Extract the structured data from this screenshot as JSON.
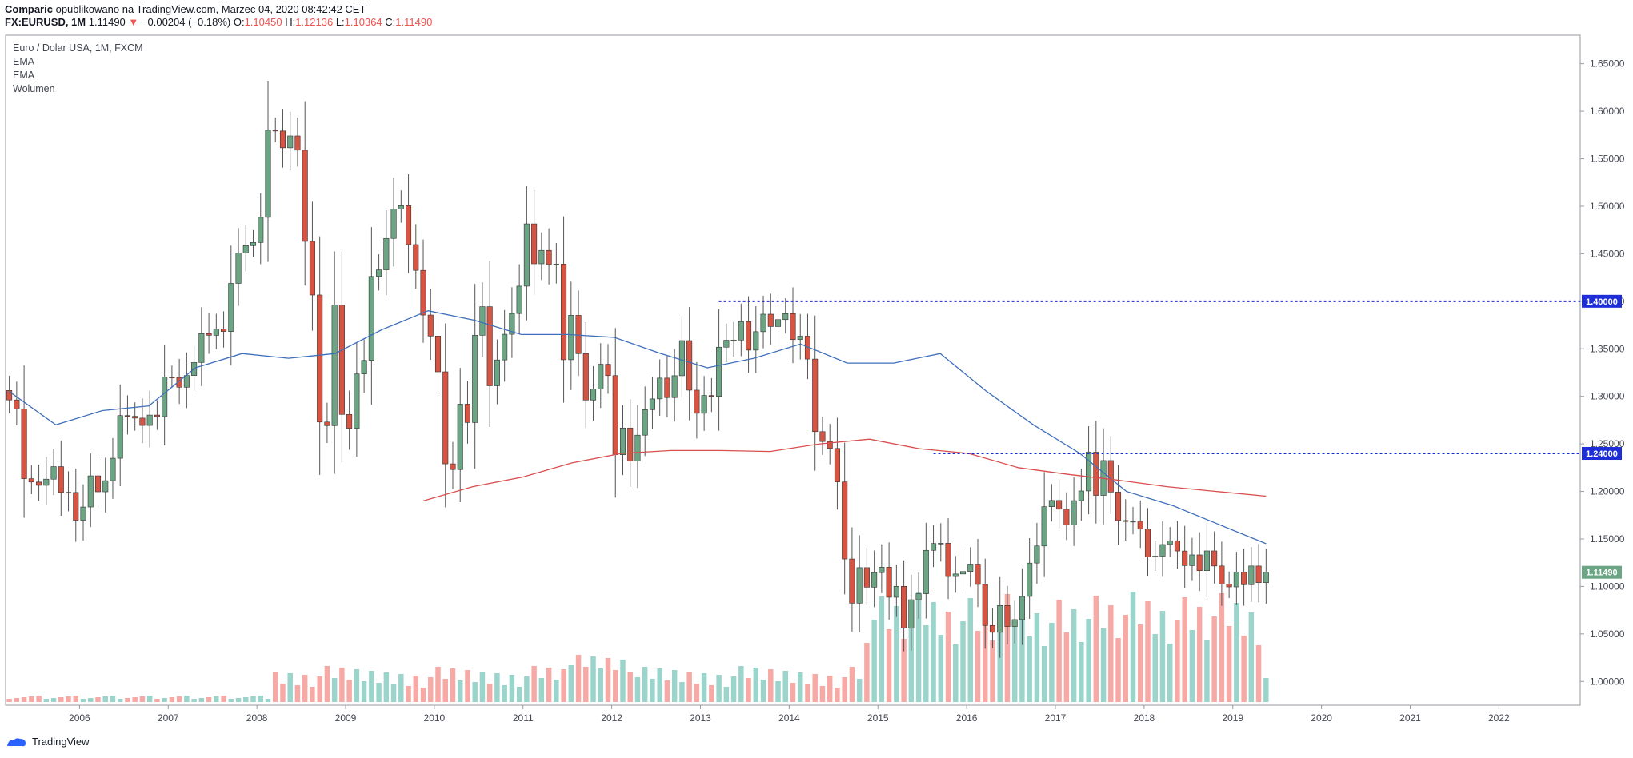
{
  "header": {
    "author": "Comparic",
    "published": "opublikowano na TradingView.com, Marzec 04, 2020 08:42:42 CET",
    "symbol": "FX:EURUSD, 1M",
    "last": "1.11490",
    "change": "−0.00204 (−0.18%)",
    "open_label": "O:",
    "open": "1.10450",
    "high_label": "H:",
    "high": "1.12136",
    "low_label": "L:",
    "low": "1.10364",
    "close_label": "C:",
    "close": "1.11490"
  },
  "legend": {
    "title": "Euro / Dolar USA, 1M, FXCM",
    "items": [
      "EMA",
      "EMA",
      "Wolumen"
    ]
  },
  "footer": {
    "brand": "TradingView"
  },
  "colors": {
    "up": "#6ba583",
    "down": "#d75442",
    "vol_up": "#9ad4cb",
    "vol_down": "#f6a9a5",
    "ema_fast": "#3f6fba",
    "ema_slow": "#d94e4e",
    "hline": "#1d2dd8",
    "price_tag": "#6ba583"
  },
  "chart_data": {
    "type": "candlestick",
    "yticks": [
      "1.65000",
      "1.60000",
      "1.55000",
      "1.50000",
      "1.45000",
      "1.40000",
      "1.35000",
      "1.30000",
      "1.25000",
      "1.20000",
      "1.15000",
      "1.10000",
      "1.05000",
      "1.00000"
    ],
    "xticks": [
      "2006",
      "2007",
      "2008",
      "2009",
      "2010",
      "2011",
      "2012",
      "2013",
      "2014",
      "2015",
      "2016",
      "2017",
      "2018",
      "2019",
      "2020",
      "2021",
      "2022"
    ],
    "ylim": [
      0.975,
      1.68
    ],
    "x_range": [
      "2005-03",
      "2022-11"
    ],
    "horizontal_levels": [
      {
        "label": "1.40000",
        "value": 1.4,
        "from": "2013-03"
      },
      {
        "label": "1.24000",
        "value": 1.24,
        "from": "2015-08"
      }
    ],
    "last_price_label": "1.11490",
    "last_price": 1.1149,
    "candles_start": "2005-03",
    "closes": [
      1.2962,
      1.2868,
      1.2134,
      1.2099,
      1.2064,
      1.2129,
      1.2261,
      1.1991,
      1.1989,
      1.1697,
      1.1836,
      1.2164,
      1.1996,
      1.2113,
      1.2349,
      1.2798,
      1.279,
      1.2771,
      1.2694,
      1.2803,
      1.2787,
      1.3202,
      1.3198,
      1.3096,
      1.3219,
      1.3356,
      1.366,
      1.3642,
      1.3706,
      1.3682,
      1.4188,
      1.4508,
      1.4585,
      1.4618,
      1.4883,
      1.58,
      1.5792,
      1.5615,
      1.574,
      1.559,
      1.463,
      1.4066,
      1.273,
      1.2692,
      1.396,
      1.281,
      1.2664,
      1.3236,
      1.3378,
      1.4261,
      1.433,
      1.4661,
      1.4971,
      1.5005,
      1.4596,
      1.4325,
      1.3855,
      1.3634,
      1.3258,
      1.229,
      1.223,
      1.2918,
      1.2725,
      1.3642,
      1.3943,
      1.3111,
      1.3383,
      1.3653,
      1.3871,
      1.4159,
      1.4814,
      1.4394,
      1.4535,
      1.4386,
      1.4391,
      1.3385,
      1.3852,
      1.3449,
      1.2961,
      1.3077,
      1.3338,
      1.3218,
      1.2386,
      1.2667,
      1.232,
      1.2592,
      1.286,
      1.2973,
      1.3192,
      1.2987,
      1.3217,
      1.3586,
      1.3065,
      1.2822,
      1.3009,
      1.3,
      1.3517,
      1.359,
      1.3592,
      1.3787,
      1.3486,
      1.368,
      1.3864,
      1.3734,
      1.3807,
      1.387,
      1.3597,
      1.3633,
      1.3392,
      1.2629,
      1.2525,
      1.2452,
      1.21,
      1.1289,
      1.0824,
      1.1198,
      1.0992,
      1.1145,
      1.1203,
      1.0886,
      1.1001,
      1.0563,
      1.086,
      1.0923,
      1.138,
      1.1452,
      1.1455,
      1.1104,
      1.1131,
      1.1157,
      1.1235,
      1.1021,
      1.0589,
      1.0517,
      1.0799,
      1.0578,
      1.0651,
      1.0895,
      1.1246,
      1.1426,
      1.1839,
      1.1905,
      1.1813,
      1.1649,
      1.1903,
      1.2005,
      1.2413,
      1.1958,
      1.2325,
      1.1993,
      1.1694,
      1.1684,
      1.1686,
      1.1603,
      1.1311,
      1.1319,
      1.1441,
      1.1481,
      1.1373,
      1.1219,
      1.1332,
      1.1166,
      1.1374,
      1.1215,
      1.1026,
      1.0995,
      1.115,
      1.1018,
      1.1215,
      1.104,
      1.1149
    ],
    "ema_fast_values": [
      1.305,
      1.27,
      1.285,
      1.29,
      1.33,
      1.345,
      1.34,
      1.345,
      1.37,
      1.39,
      1.38,
      1.365,
      1.365,
      1.362,
      1.345,
      1.33,
      1.34,
      1.355,
      1.335,
      1.335,
      1.345,
      1.305,
      1.27,
      1.24,
      1.2,
      1.185,
      1.165,
      1.145
    ],
    "ema_slow_values": [
      1.19,
      1.205,
      1.215,
      1.23,
      1.24,
      1.243,
      1.243,
      1.242,
      1.25,
      1.255,
      1.245,
      1.24,
      1.225,
      1.218,
      1.212,
      1.205,
      1.2,
      1.195
    ]
  }
}
